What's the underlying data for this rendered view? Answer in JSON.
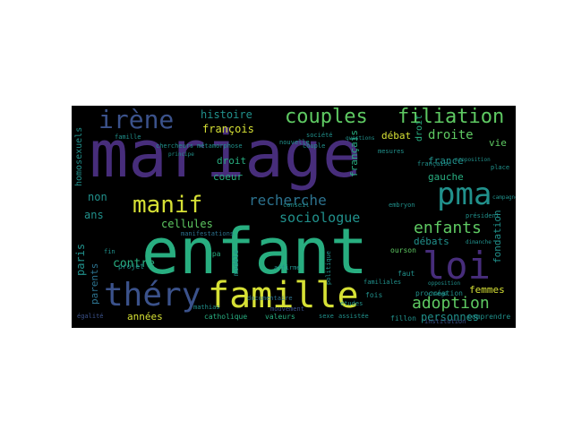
{
  "palette": {
    "purple": "#472d7b",
    "indigo": "#3b528b",
    "blue": "#2c728e",
    "teal": "#21918c",
    "green": "#28ae80",
    "lime": "#5ec962",
    "yellow": "#d6e035",
    "background": "#000000"
  },
  "words": [
    {
      "text": "mariage"
    },
    {
      "text": "enfant"
    },
    {
      "text": "famille"
    },
    {
      "text": "loi"
    },
    {
      "text": "pma"
    },
    {
      "text": "théry"
    },
    {
      "text": "irène"
    },
    {
      "text": "couples"
    },
    {
      "text": "filiation"
    },
    {
      "text": "manif"
    },
    {
      "text": "enfants"
    },
    {
      "text": "adoption"
    },
    {
      "text": "recherche"
    },
    {
      "text": "sociologue"
    },
    {
      "text": "droite"
    },
    {
      "text": "histoire"
    },
    {
      "text": "françois"
    },
    {
      "text": "débat"
    },
    {
      "text": "droit"
    },
    {
      "text": "coeur"
    },
    {
      "text": "cellules"
    },
    {
      "text": "contre"
    },
    {
      "text": "non"
    },
    {
      "text": "ans"
    },
    {
      "text": "paris"
    },
    {
      "text": "parents"
    },
    {
      "text": "années"
    },
    {
      "text": "personnes"
    },
    {
      "text": "gauche"
    },
    {
      "text": "france"
    },
    {
      "text": "femmes"
    },
    {
      "text": "débats"
    },
    {
      "text": "fondation"
    },
    {
      "text": "vie"
    },
    {
      "text": "homosexuels"
    },
    {
      "text": "français"
    },
    {
      "text": "droit"
    },
    {
      "text": "comprendre"
    },
    {
      "text": "fillon"
    },
    {
      "text": "catholique"
    },
    {
      "text": "valeurs"
    },
    {
      "text": "égalité"
    },
    {
      "text": "modèle"
    },
    {
      "text": "projet"
    },
    {
      "text": "mathias"
    },
    {
      "text": "procréation"
    },
    {
      "text": "familiales"
    },
    {
      "text": "ourson"
    },
    {
      "text": "embryon"
    },
    {
      "text": "président"
    },
    {
      "text": "fois"
    },
    {
      "text": "faut"
    },
    {
      "text": "sexe"
    },
    {
      "text": "assistée"
    },
    {
      "text": "institution"
    },
    {
      "text": "manifestations"
    },
    {
      "text": "gpa"
    },
    {
      "text": "affirme"
    },
    {
      "text": "mouvement"
    },
    {
      "text": "documentaire"
    },
    {
      "text": "politique"
    },
    {
      "text": "société"
    },
    {
      "text": "couple"
    },
    {
      "text": "chercheurs"
    },
    {
      "text": "métamorphose"
    },
    {
      "text": "nouvelle"
    },
    {
      "text": "famille"
    },
    {
      "text": "place"
    },
    {
      "text": "conseil"
    },
    {
      "text": "mesures"
    },
    {
      "text": "études"
    },
    {
      "text": "fin"
    },
    {
      "text": "changé"
    },
    {
      "text": "opposition"
    },
    {
      "text": "française"
    },
    {
      "text": "proposition"
    },
    {
      "text": "principe"
    },
    {
      "text": "dimanche"
    },
    {
      "text": "campagne"
    },
    {
      "text": "questions"
    }
  ]
}
